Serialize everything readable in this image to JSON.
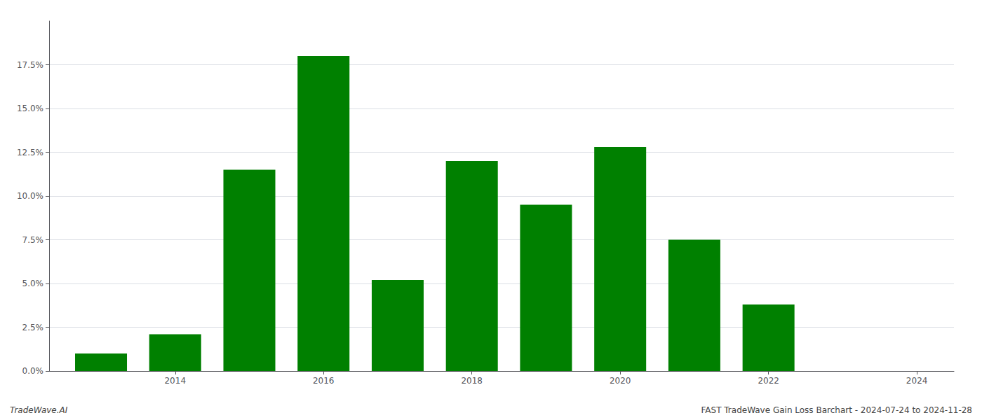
{
  "chart_data": {
    "type": "bar",
    "x": [
      2013,
      2014,
      2015,
      2016,
      2017,
      2018,
      2019,
      2020,
      2021,
      2022,
      2023
    ],
    "values": [
      0.01,
      0.021,
      0.115,
      0.18,
      0.052,
      0.12,
      0.095,
      0.128,
      0.075,
      0.038,
      0.0
    ],
    "color": "#008000",
    "xlim": [
      2012.3,
      2024.5
    ],
    "xticks": [
      2014,
      2016,
      2018,
      2020,
      2022,
      2024
    ],
    "ylim": [
      0,
      0.2
    ],
    "yticks": [
      {
        "value": 0.0,
        "label": "0.0%"
      },
      {
        "value": 0.025,
        "label": "2.5%"
      },
      {
        "value": 0.05,
        "label": "5.0%"
      },
      {
        "value": 0.075,
        "label": "7.5%"
      },
      {
        "value": 0.1,
        "label": "10.0%"
      },
      {
        "value": 0.125,
        "label": "12.5%"
      },
      {
        "value": 0.15,
        "label": "15.0%"
      },
      {
        "value": 0.175,
        "label": "17.5%"
      }
    ],
    "grid": true,
    "annotations": [
      "TradeWave.AI",
      "FAST TradeWave Gain Loss Barchart - 2024-07-24 to 2024-11-28"
    ]
  }
}
